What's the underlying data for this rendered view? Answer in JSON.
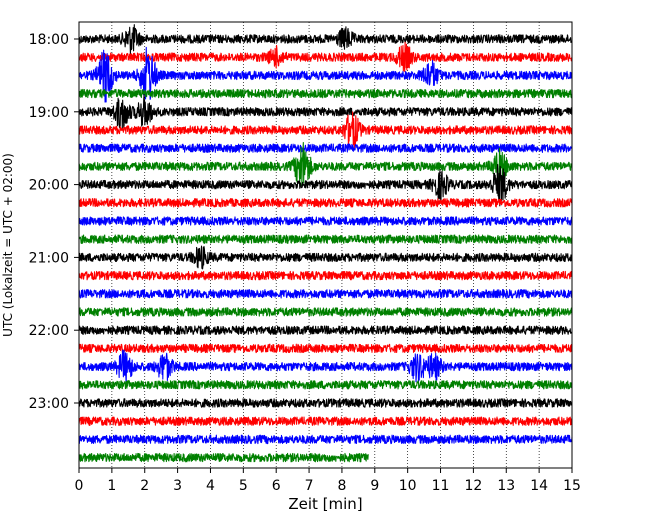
{
  "chart_data": {
    "type": "line",
    "title": "",
    "xlabel": "Zeit  [min]",
    "ylabel": "UTC (Lokalzeit = UTC + 02:00)",
    "xlim": [
      0,
      15
    ],
    "x_ticks": [
      0,
      1,
      2,
      3,
      4,
      5,
      6,
      7,
      8,
      9,
      10,
      11,
      12,
      13,
      14,
      15
    ],
    "y_ticks": [
      "18:00",
      "19:00",
      "20:00",
      "21:00",
      "22:00",
      "23:00"
    ],
    "grid": "vertical dotted",
    "trace_interval_minutes": 15,
    "start_time": "18:00",
    "trace_count": 24,
    "last_trace_end_minutes": 8.8,
    "colors_cycle": [
      "#000000",
      "#ff0000",
      "#0000ff",
      "#008000"
    ],
    "events": [
      {
        "trace_start": "18:00",
        "minute": 1.6,
        "amplitude": 1.1
      },
      {
        "trace_start": "18:00",
        "minute": 8.1,
        "amplitude": 0.8
      },
      {
        "trace_start": "18:15",
        "minute": 6.0,
        "amplitude": 0.7
      },
      {
        "trace_start": "18:15",
        "minute": 9.9,
        "amplitude": 1.0
      },
      {
        "trace_start": "18:30",
        "minute": 0.8,
        "amplitude": 2.2
      },
      {
        "trace_start": "18:30",
        "minute": 2.1,
        "amplitude": 2.4
      },
      {
        "trace_start": "18:30",
        "minute": 10.7,
        "amplitude": 1.1
      },
      {
        "trace_start": "19:00",
        "minute": 1.3,
        "amplitude": 1.4
      },
      {
        "trace_start": "19:00",
        "minute": 2.0,
        "amplitude": 1.2
      },
      {
        "trace_start": "19:15",
        "minute": 8.3,
        "amplitude": 1.5
      },
      {
        "trace_start": "19:45",
        "minute": 6.8,
        "amplitude": 2.0
      },
      {
        "trace_start": "19:45",
        "minute": 12.8,
        "amplitude": 1.3
      },
      {
        "trace_start": "20:00",
        "minute": 11.0,
        "amplitude": 1.1
      },
      {
        "trace_start": "20:00",
        "minute": 12.8,
        "amplitude": 1.6
      },
      {
        "trace_start": "21:00",
        "minute": 3.7,
        "amplitude": 0.8
      },
      {
        "trace_start": "22:30",
        "minute": 1.4,
        "amplitude": 1.3
      },
      {
        "trace_start": "22:30",
        "minute": 2.6,
        "amplitude": 1.1
      },
      {
        "trace_start": "22:30",
        "minute": 10.3,
        "amplitude": 1.1
      },
      {
        "trace_start": "22:30",
        "minute": 10.8,
        "amplitude": 1.0
      }
    ]
  }
}
